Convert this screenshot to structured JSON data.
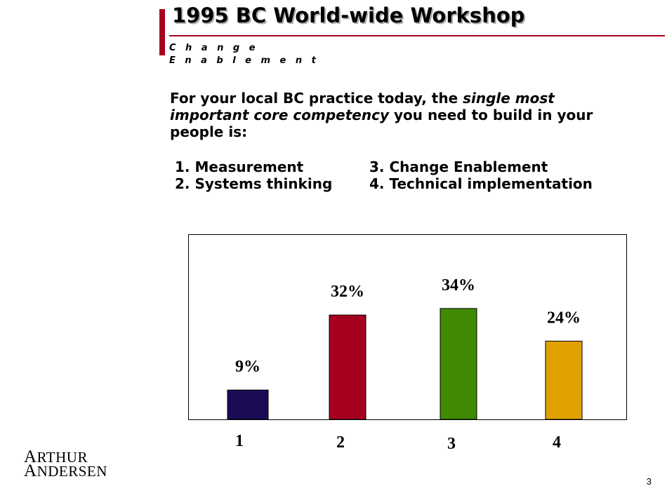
{
  "slide": {
    "title": "1995 BC World-wide Workshop",
    "subtitle": "Change Enablement",
    "question_pre": "For your local BC practice today, the ",
    "question_emph": "single most important core competency",
    "question_post": " you need to build in your people is:",
    "options": [
      "1. Measurement",
      "3. Change Enablement",
      "2. Systems thinking",
      "4. Technical implementation"
    ],
    "logo": {
      "line1_cap": "A",
      "line1_rest": "RTHUR",
      "line2_cap": "A",
      "line2_rest": "NDERSEN"
    },
    "page_number": "3",
    "accent_color": "#a5001e"
  },
  "chart_data": {
    "type": "bar",
    "categories": [
      "1",
      "2",
      "3",
      "4"
    ],
    "values": [
      9,
      32,
      34,
      24
    ],
    "data_labels": [
      "9%",
      "32%",
      "34%",
      "24%"
    ],
    "colors": [
      "#1b0b55",
      "#a5001e",
      "#3f8a00",
      "#e0a000"
    ],
    "ylim": [
      0,
      40
    ],
    "grid": false,
    "legend": "none"
  }
}
